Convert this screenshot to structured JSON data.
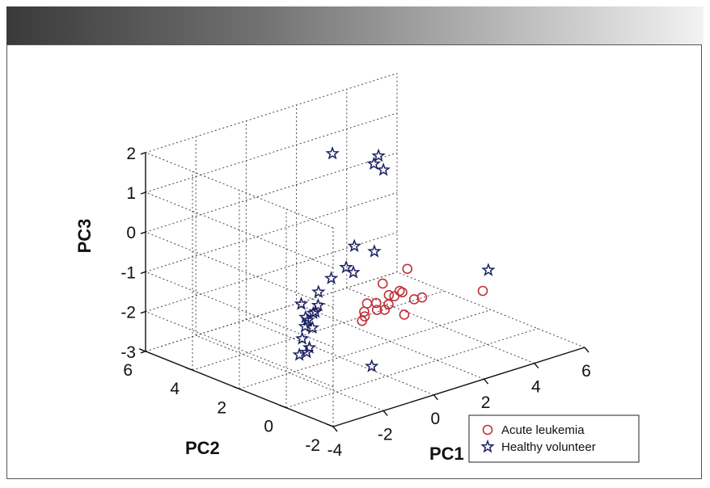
{
  "chart_data": {
    "type": "scatter3d",
    "title": "",
    "xlabel": "PC1",
    "ylabel": "PC2",
    "zlabel": "PC3",
    "xlim": [
      -4,
      6
    ],
    "ylim": [
      -2,
      6
    ],
    "zlim": [
      -3,
      2
    ],
    "x_ticks": [
      "-4",
      "-2",
      "0",
      "2",
      "4",
      "6"
    ],
    "y_ticks": [
      "-2",
      "0",
      "2",
      "4",
      "6"
    ],
    "z_ticks": [
      "-3",
      "-2",
      "-1",
      "0",
      "1",
      "2"
    ],
    "grid": true,
    "legend_position": "bottom-right",
    "series": [
      {
        "name": "Acute leukemia",
        "marker": "circle",
        "color": "#c0303a",
        "points": [
          [
            -0.2,
            -0.3,
            -0.85
          ],
          [
            -0.4,
            -0.5,
            -1.0
          ],
          [
            -0.7,
            -0.3,
            -0.95
          ],
          [
            -0.6,
            0.2,
            -1.1
          ],
          [
            -0.9,
            0.0,
            -1.2
          ],
          [
            -0.3,
            0.1,
            -1.3
          ],
          [
            -0.6,
            0.3,
            -1.45
          ],
          [
            -0.8,
            0.2,
            -1.5
          ],
          [
            0.3,
            0.0,
            -1.05
          ],
          [
            0.6,
            0.1,
            -1.0
          ],
          [
            0.8,
            0.2,
            -1.1
          ],
          [
            0.9,
            -0.2,
            -1.2
          ],
          [
            0.1,
            0.2,
            -1.4
          ],
          [
            0.6,
            -0.1,
            -1.55
          ],
          [
            1.4,
            0.0,
            -1.3
          ],
          [
            0.3,
            0.5,
            -0.85
          ],
          [
            1.0,
            0.2,
            -0.55
          ],
          [
            4.0,
            0.2,
            -1.7
          ]
        ]
      },
      {
        "name": "Healthy volunteer",
        "marker": "star",
        "color": "#1c2060",
        "points": [
          [
            2.0,
            2.5,
            1.55
          ],
          [
            1.1,
            3.5,
            1.55
          ],
          [
            2.1,
            2.4,
            1.2
          ],
          [
            2.0,
            2.7,
            1.3
          ],
          [
            -0.5,
            1.2,
            -0.45
          ],
          [
            0.2,
            1.6,
            -0.15
          ],
          [
            -0.4,
            1.0,
            -0.55
          ],
          [
            0.9,
            1.5,
            -0.4
          ],
          [
            -1.0,
            1.3,
            -0.65
          ],
          [
            -1.6,
            1.2,
            -0.85
          ],
          [
            -2.1,
            1.4,
            -1.1
          ],
          [
            -1.8,
            1.0,
            -1.1
          ],
          [
            -2.0,
            0.9,
            -1.2
          ],
          [
            -1.9,
            1.1,
            -1.3
          ],
          [
            -2.3,
            1.0,
            -1.3
          ],
          [
            -2.4,
            0.6,
            -1.45
          ],
          [
            -2.9,
            0.5,
            -1.6
          ],
          [
            -2.8,
            0.3,
            -1.8
          ],
          [
            -3.0,
            0.2,
            -1.85
          ],
          [
            -3.2,
            0.3,
            -1.9
          ],
          [
            -2.3,
            0.9,
            -1.35
          ],
          [
            -2.6,
            0.7,
            -1.4
          ],
          [
            4.5,
            0.5,
            -1.35
          ],
          [
            -2.0,
            -1.5,
            -2.0
          ]
        ]
      }
    ]
  }
}
